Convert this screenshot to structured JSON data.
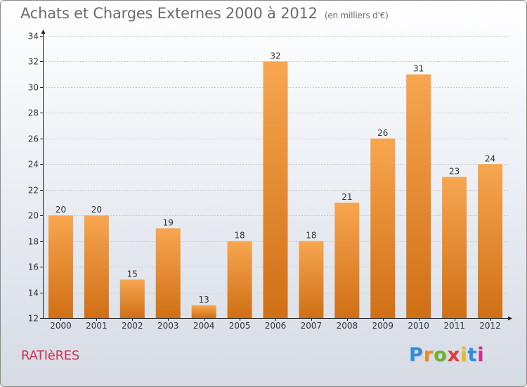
{
  "title": "Achats et Charges Externes 2000 à 2012",
  "subtitle": "(en milliers d'€)",
  "commune": "RATIèRES",
  "logo": {
    "text": "Proxiti",
    "letter_colors": [
      "#2f8fd8",
      "#f08a1c",
      "#6ab42d",
      "#e03a3a",
      "#f0b81c",
      "#2f8fd8",
      "#d62d8a"
    ]
  },
  "colors": {
    "bar_top": "#f7a650",
    "bar_bottom": "#d06f16",
    "axis": "#222222",
    "grid": "#c8c8c8",
    "label": "#333333"
  },
  "chart_data": {
    "type": "bar",
    "title": "Achats et Charges Externes 2000 à 2012",
    "subtitle": "(en milliers d'€)",
    "xlabel": "",
    "ylabel": "",
    "categories": [
      "2000",
      "2001",
      "2002",
      "2003",
      "2004",
      "2005",
      "2006",
      "2007",
      "2008",
      "2009",
      "2010",
      "2011",
      "2012"
    ],
    "values": [
      20,
      20,
      15,
      19,
      13,
      18,
      32,
      18,
      21,
      26,
      31,
      23,
      24
    ],
    "ylim": [
      12,
      34
    ],
    "yticks": [
      12,
      14,
      16,
      18,
      20,
      22,
      24,
      26,
      28,
      30,
      32,
      34
    ],
    "grid": true,
    "data_labels": true
  }
}
